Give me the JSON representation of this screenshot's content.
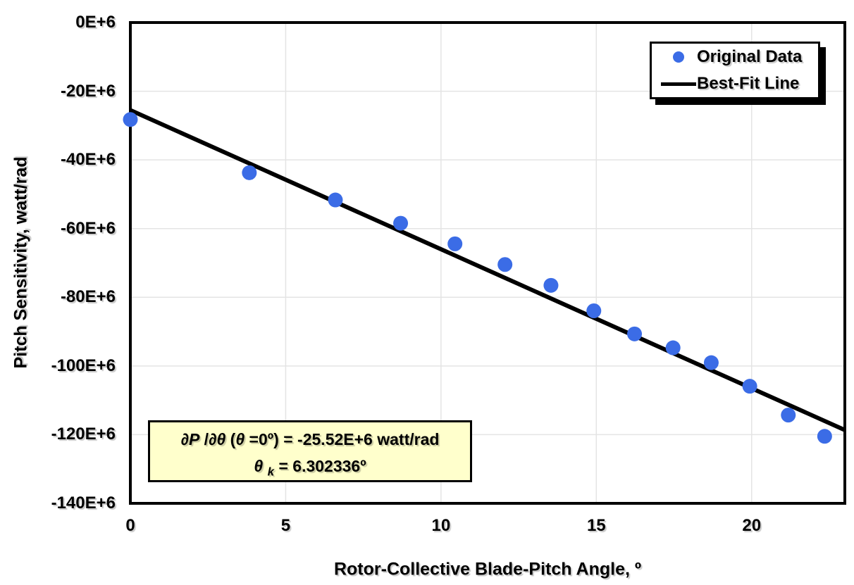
{
  "chart_data": {
    "type": "scatter",
    "title": "",
    "xlabel": "Rotor-Collective Blade-Pitch Angle, º",
    "ylabel": "Pitch Sensitivity, watt/rad",
    "xlim": [
      0,
      23.0
    ],
    "ylim": [
      -140000000.0,
      0
    ],
    "grid": true,
    "legend_position": "top-right",
    "x_ticks": {
      "values": [
        0,
        5,
        10,
        15,
        20
      ],
      "labels": [
        "0",
        "5",
        "10",
        "15",
        "20"
      ]
    },
    "y_ticks": {
      "values": [
        0,
        -20000000.0,
        -40000000.0,
        -60000000.0,
        -80000000.0,
        -100000000.0,
        -120000000.0,
        -140000000.0
      ],
      "labels": [
        "0E+6",
        "-20E+6",
        "-40E+6",
        "-60E+6",
        "-80E+6",
        "-100E+6",
        "-120E+6",
        "-140E+6"
      ]
    },
    "colors": {
      "marker": "#3b6ce6",
      "fit_line": "#000000",
      "grid": "#e4e4e4",
      "plot_border": "#000000",
      "annotation_bg": "#ffffcc"
    },
    "series": [
      {
        "name": "Original Data",
        "type": "scatter",
        "x": [
          0.0,
          3.83,
          6.6,
          8.7,
          10.45,
          12.06,
          13.54,
          14.92,
          16.23,
          17.47,
          18.7,
          19.94,
          21.18,
          22.35
        ],
        "y": [
          -28240000.0,
          -43730000.0,
          -51660000.0,
          -58440000.0,
          -64440000.0,
          -70460000.0,
          -76530000.0,
          -83940000.0,
          -90670000.0,
          -94710000.0,
          -99040000.0,
          -105900000.0,
          -114300000.0,
          -120480000.0
        ]
      },
      {
        "name": "Best-Fit Line",
        "type": "line",
        "fit": {
          "intercept_watt_per_rad": -25520000.0,
          "theta_k_deg": 6.302336
        },
        "x_range": [
          0,
          23.0
        ]
      }
    ],
    "annotation": {
      "line1_segments": [
        {
          "t": "∂P",
          "i": true
        },
        {
          "t": " /",
          "i": false
        },
        {
          "t": "∂θ",
          "i": true
        },
        {
          "t": " (",
          "i": false
        },
        {
          "t": "θ",
          "i": true
        },
        {
          "t": " =0º) = -25.52E+6 watt/rad",
          "i": false
        }
      ],
      "line2_segments": [
        {
          "t": "θ",
          "i": true
        },
        {
          "t": " ",
          "i": false
        },
        {
          "t": "k",
          "i": true,
          "sub": true
        },
        {
          "t": " = 6.302336º",
          "i": false
        }
      ]
    }
  }
}
